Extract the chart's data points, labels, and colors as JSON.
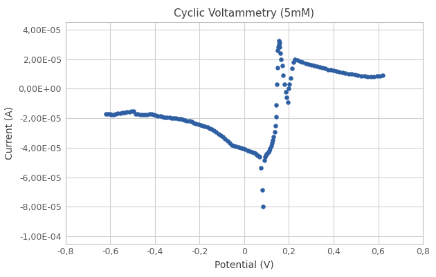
{
  "title": "Cyclic Voltammetry (5mM)",
  "xlabel": "Potential (V)",
  "ylabel": "Current (A)",
  "xlim": [
    -0.8,
    0.8
  ],
  "ylim": [
    -0.000105,
    4.5e-05
  ],
  "yticks": [
    -0.0001,
    -8e-05,
    -6e-05,
    -4e-05,
    -2e-05,
    0,
    2e-05,
    4e-05
  ],
  "xticks": [
    -0.8,
    -0.6,
    -0.4,
    -0.2,
    0.0,
    0.2,
    0.4,
    0.6,
    0.8
  ],
  "dot_color": "#2E5FA3",
  "dot_size": 22,
  "background_color": "#ffffff",
  "grid_color": "#d0d0d0",
  "points": [
    [
      -0.62,
      -1.7e-05
    ],
    [
      -0.61,
      -1.72e-05
    ],
    [
      -0.6,
      -1.73e-05
    ],
    [
      -0.595,
      -1.78e-05
    ],
    [
      -0.585,
      -1.75e-05
    ],
    [
      -0.575,
      -1.72e-05
    ],
    [
      -0.565,
      -1.68e-05
    ],
    [
      -0.555,
      -1.65e-05
    ],
    [
      -0.545,
      -1.63e-05
    ],
    [
      -0.535,
      -1.61e-05
    ],
    [
      -0.525,
      -1.59e-05
    ],
    [
      -0.515,
      -1.57e-05
    ],
    [
      -0.505,
      -1.55e-05
    ],
    [
      -0.495,
      -1.53e-05
    ],
    [
      -0.485,
      -1.7e-05
    ],
    [
      -0.475,
      -1.73e-05
    ],
    [
      -0.465,
      -1.75e-05
    ],
    [
      -0.455,
      -1.78e-05
    ],
    [
      -0.445,
      -1.76e-05
    ],
    [
      -0.435,
      -1.74e-05
    ],
    [
      -0.425,
      -1.72e-05
    ],
    [
      -0.415,
      -1.73e-05
    ],
    [
      -0.405,
      -1.75e-05
    ],
    [
      -0.395,
      -1.8e-05
    ],
    [
      -0.385,
      -1.85e-05
    ],
    [
      -0.375,
      -1.87e-05
    ],
    [
      -0.365,
      -1.9e-05
    ],
    [
      -0.355,
      -1.93e-05
    ],
    [
      -0.345,
      -1.95e-05
    ],
    [
      -0.335,
      -1.97e-05
    ],
    [
      -0.325,
      -1.98e-05
    ],
    [
      -0.315,
      -1.99e-05
    ],
    [
      -0.305,
      -2e-05
    ],
    [
      -0.295,
      -2.02e-05
    ],
    [
      -0.285,
      -2.05e-05
    ],
    [
      -0.275,
      -2.08e-05
    ],
    [
      -0.265,
      -2.12e-05
    ],
    [
      -0.255,
      -2.16e-05
    ],
    [
      -0.245,
      -2.2e-05
    ],
    [
      -0.235,
      -2.25e-05
    ],
    [
      -0.225,
      -2.3e-05
    ],
    [
      -0.215,
      -2.35e-05
    ],
    [
      -0.205,
      -2.4e-05
    ],
    [
      -0.195,
      -2.45e-05
    ],
    [
      -0.185,
      -2.5e-05
    ],
    [
      -0.175,
      -2.55e-05
    ],
    [
      -0.165,
      -2.62e-05
    ],
    [
      -0.155,
      -2.68e-05
    ],
    [
      -0.145,
      -2.76e-05
    ],
    [
      -0.135,
      -2.85e-05
    ],
    [
      -0.125,
      -2.95e-05
    ],
    [
      -0.115,
      -3.05e-05
    ],
    [
      -0.105,
      -3.15e-05
    ],
    [
      -0.095,
      -3.28e-05
    ],
    [
      -0.085,
      -3.42e-05
    ],
    [
      -0.075,
      -3.56e-05
    ],
    [
      -0.065,
      -3.68e-05
    ],
    [
      -0.055,
      -3.8e-05
    ],
    [
      -0.045,
      -3.88e-05
    ],
    [
      -0.035,
      -3.93e-05
    ],
    [
      -0.025,
      -3.97e-05
    ],
    [
      -0.015,
      -4.02e-05
    ],
    [
      -0.005,
      -4.07e-05
    ],
    [
      0.005,
      -4.12e-05
    ],
    [
      0.015,
      -4.17e-05
    ],
    [
      0.025,
      -4.22e-05
    ],
    [
      0.035,
      -4.28e-05
    ],
    [
      0.045,
      -4.35e-05
    ],
    [
      0.05,
      -4.4e-05
    ],
    [
      0.055,
      -4.48e-05
    ],
    [
      0.06,
      -4.52e-05
    ],
    [
      0.065,
      -4.55e-05
    ],
    [
      0.07,
      -4.6e-05
    ],
    [
      0.075,
      -5.35e-05
    ],
    [
      0.08,
      -6.85e-05
    ],
    [
      0.085,
      -8e-05
    ],
    [
      0.09,
      -4.85e-05
    ],
    [
      0.093,
      -4.6e-05
    ],
    [
      0.096,
      -4.5e-05
    ],
    [
      0.1,
      -4.45e-05
    ],
    [
      0.104,
      -4.38e-05
    ],
    [
      0.108,
      -4.28e-05
    ],
    [
      0.112,
      -4.18e-05
    ],
    [
      0.116,
      -4.05e-05
    ],
    [
      0.12,
      -3.88e-05
    ],
    [
      0.124,
      -3.7e-05
    ],
    [
      0.128,
      -3.5e-05
    ],
    [
      0.132,
      -3.28e-05
    ],
    [
      0.136,
      -2.95e-05
    ],
    [
      0.14,
      -2.5e-05
    ],
    [
      0.142,
      -1.9e-05
    ],
    [
      0.144,
      -1.1e-05
    ],
    [
      0.146,
      3e-06
    ],
    [
      0.148,
      1.4e-05
    ],
    [
      0.15,
      2.6e-05
    ],
    [
      0.152,
      2.8e-05
    ],
    [
      0.154,
      3e-05
    ],
    [
      0.156,
      3.25e-05
    ],
    [
      0.158,
      3.1e-05
    ],
    [
      0.16,
      2.8e-05
    ],
    [
      0.163,
      2.4e-05
    ],
    [
      0.166,
      2e-05
    ],
    [
      0.17,
      1.55e-05
    ],
    [
      0.175,
      9e-06
    ],
    [
      0.18,
      3e-06
    ],
    [
      0.185,
      -2e-06
    ],
    [
      0.19,
      -6e-06
    ],
    [
      0.195,
      -9e-06
    ],
    [
      0.198,
      0.0
    ],
    [
      0.202,
      3e-06
    ],
    [
      0.207,
      7e-06
    ],
    [
      0.213,
      1.35e-05
    ],
    [
      0.22,
      1.8e-05
    ],
    [
      0.228,
      2e-05
    ],
    [
      0.238,
      1.95e-05
    ],
    [
      0.25,
      1.85e-05
    ],
    [
      0.262,
      1.78e-05
    ],
    [
      0.275,
      1.72e-05
    ],
    [
      0.288,
      1.66e-05
    ],
    [
      0.3,
      1.6e-05
    ],
    [
      0.312,
      1.55e-05
    ],
    [
      0.325,
      1.5e-05
    ],
    [
      0.338,
      1.45e-05
    ],
    [
      0.35,
      1.4e-05
    ],
    [
      0.363,
      1.35e-05
    ],
    [
      0.375,
      1.3e-05
    ],
    [
      0.387,
      1.26e-05
    ],
    [
      0.4,
      1.22e-05
    ],
    [
      0.413,
      1.18e-05
    ],
    [
      0.426,
      1.14e-05
    ],
    [
      0.44,
      1.1e-05
    ],
    [
      0.454,
      1.06e-05
    ],
    [
      0.468,
      1.02e-05
    ],
    [
      0.482,
      9.8e-06
    ],
    [
      0.496,
      9.4e-06
    ],
    [
      0.51,
      9e-06
    ],
    [
      0.524,
      8.7e-06
    ],
    [
      0.538,
      8.5e-06
    ],
    [
      0.552,
      8.3e-06
    ],
    [
      0.566,
      8.2e-06
    ],
    [
      0.58,
      8.3e-06
    ],
    [
      0.594,
      8.5e-06
    ],
    [
      0.608,
      8.7e-06
    ],
    [
      0.62,
      9e-06
    ]
  ]
}
